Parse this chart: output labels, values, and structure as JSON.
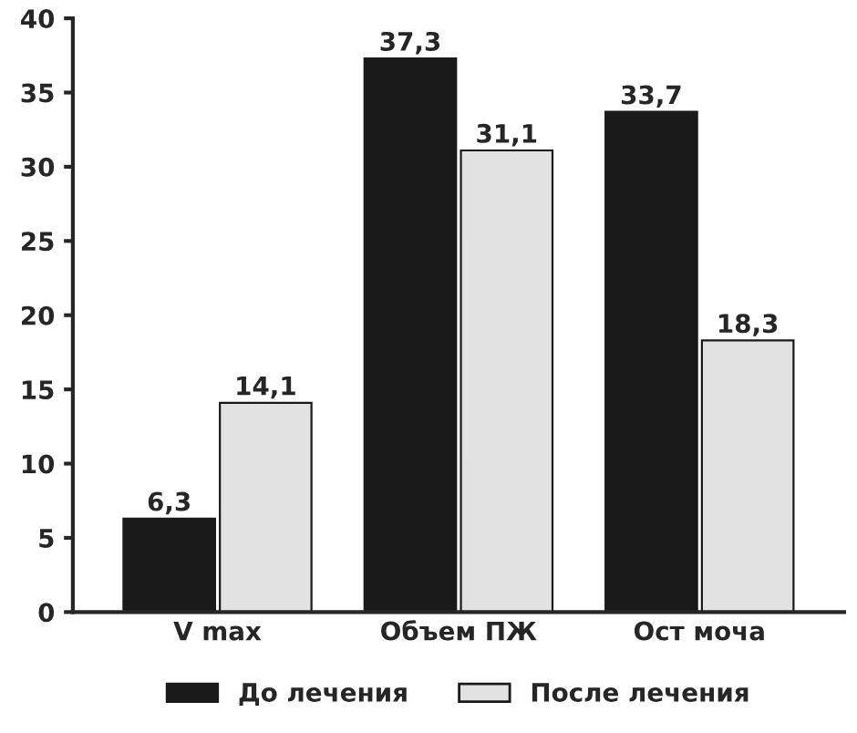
{
  "chart_data": {
    "type": "bar",
    "categories": [
      "V max",
      "Объем ПЖ",
      "Ост моча"
    ],
    "series": [
      {
        "name": "До лечения",
        "color": "#1a1a1a",
        "values": [
          6.3,
          37.3,
          33.7
        ],
        "value_labels": [
          "6,3",
          "37,3",
          "33,7"
        ]
      },
      {
        "name": "После лечения",
        "color": "#e2e2e2",
        "values": [
          14.1,
          31.1,
          18.3
        ],
        "value_labels": [
          "14,1",
          "31,1",
          "18,3"
        ]
      }
    ],
    "ylim": [
      0,
      40
    ],
    "yticks": [
      0,
      5,
      10,
      15,
      20,
      25,
      30,
      35,
      40
    ],
    "grid": false,
    "legend": "bottom"
  }
}
